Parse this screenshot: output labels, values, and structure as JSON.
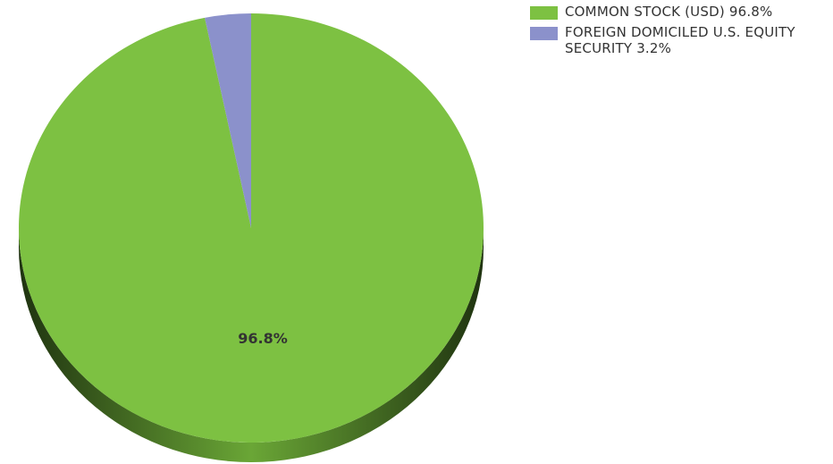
{
  "chart_data": {
    "type": "pie",
    "series": [
      {
        "name": "COMMON STOCK (USD)",
        "value": 96.8,
        "label": "96.8%",
        "color": "#7dc142"
      },
      {
        "name": "FOREIGN DOMICILED U.S. EQUITY SECURITY",
        "value": 3.2,
        "label": "3.2%",
        "color": "#8b91cb"
      }
    ],
    "data_labels": [
      "96.8%"
    ],
    "legend": {
      "placement": "top-right",
      "items": [
        {
          "text": "COMMON STOCK (USD) 96.8%",
          "color": "#7dc142"
        },
        {
          "text": "FOREIGN DOMICILED U.S. EQUITY SECURITY 3.2%",
          "color": "#8b91cb"
        }
      ]
    },
    "style": "3d-tilted"
  }
}
